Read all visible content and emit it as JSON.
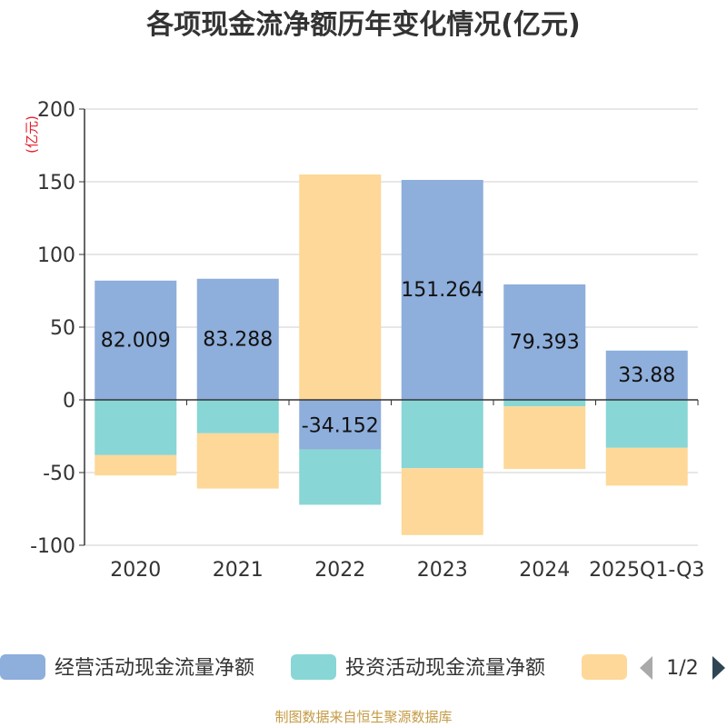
{
  "chart_data": {
    "type": "bar",
    "stacked": true,
    "title": "各项现金流净额历年变化情况(亿元)",
    "ylabel": "(亿元)",
    "xlabel": "",
    "ylim": [
      -100,
      200
    ],
    "yticks": [
      -100,
      -50,
      0,
      50,
      100,
      150,
      200
    ],
    "categories": [
      "2020",
      "2021",
      "2022",
      "2023",
      "2024",
      "2025Q1-Q3"
    ],
    "series": [
      {
        "name": "经营活动现金流量净额",
        "color": "#8eaedb",
        "values": [
          82.009,
          83.288,
          -34.152,
          151.264,
          79.393,
          33.88
        ],
        "labels": [
          "82.009",
          "83.288",
          "-34.152",
          "151.264",
          "79.393",
          "33.88"
        ]
      },
      {
        "name": "投资活动现金流量净额",
        "color": "#88d6d6",
        "values": [
          -38,
          -23,
          -38,
          -47,
          -4.5,
          -33
        ]
      },
      {
        "name": "",
        "color": "#fdd898",
        "values": [
          -14,
          -38,
          155,
          -46,
          -43,
          -26
        ]
      }
    ],
    "legend": {
      "page": "1/2",
      "position": "bottom"
    }
  },
  "footer": {
    "source": "制图数据来自恒生聚源数据库"
  }
}
